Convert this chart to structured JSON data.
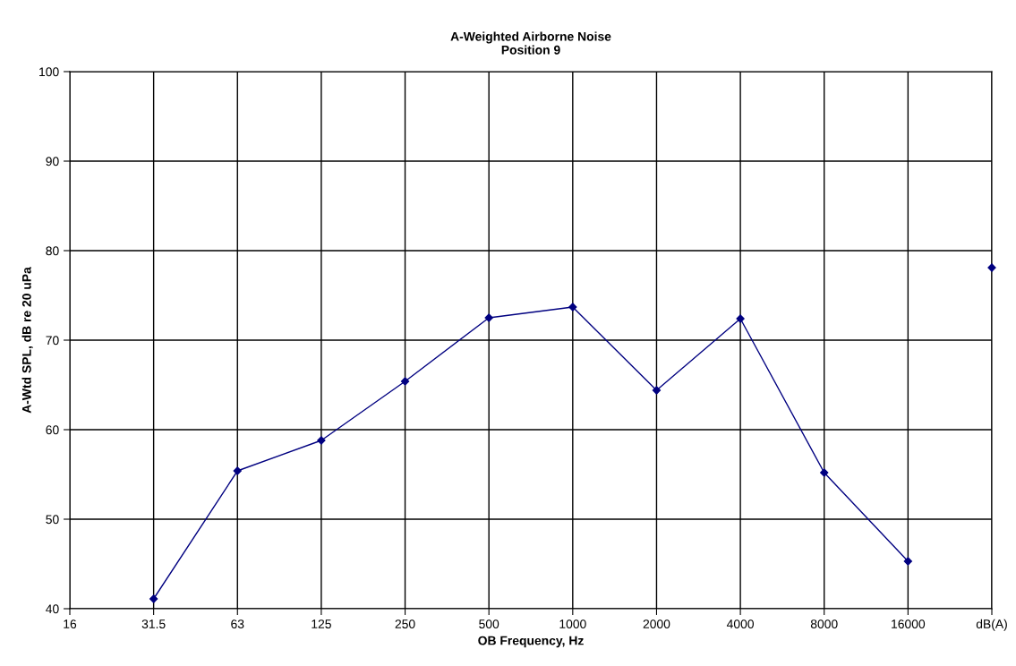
{
  "chart_data": {
    "type": "line",
    "title": "A-Weighted Airborne Noise\nPosition 9",
    "xlabel": "OB Frequency, Hz",
    "ylabel": "A-Wtd SPL, dB re 20 uPa",
    "categories": [
      "16",
      "31.5",
      "63",
      "125",
      "250",
      "500",
      "1000",
      "2000",
      "4000",
      "8000",
      "16000",
      "dB(A)"
    ],
    "series": [
      {
        "color": "#000080",
        "values": [
          null,
          41.1,
          55.4,
          58.8,
          65.4,
          72.5,
          73.7,
          64.4,
          72.4,
          55.2,
          45.3,
          null
        ]
      },
      {
        "type": "scatter",
        "color": "#000080",
        "values": [
          null,
          null,
          null,
          null,
          null,
          null,
          null,
          null,
          null,
          null,
          null,
          78.1
        ]
      }
    ],
    "ylim": [
      40,
      100
    ],
    "yticks": [
      40,
      50,
      60,
      70,
      80,
      90,
      100
    ],
    "grid": true,
    "marker": "diamond",
    "line_style": "solid",
    "legend": false
  }
}
